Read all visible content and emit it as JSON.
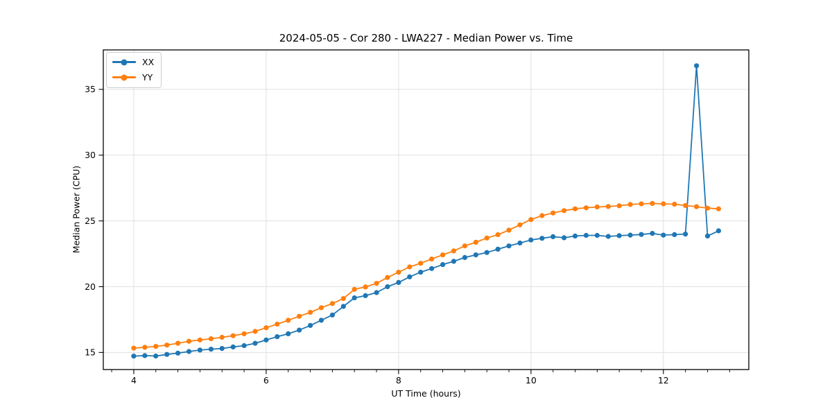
{
  "chart": {
    "legend": [
      "XX",
      "YY"
    ]
  },
  "chart_data": {
    "type": "line",
    "title": "2024-05-05 - Cor 280 - LWA227 - Median Power vs. Time",
    "xlabel": "UT Time (hours)",
    "ylabel": "Median Power (CPU)",
    "xlim": [
      3.54,
      13.29
    ],
    "ylim": [
      13.7,
      38.0
    ],
    "x_ticks": [
      4,
      6,
      8,
      10,
      12
    ],
    "x_minor_step": 0.3333,
    "y_ticks": [
      15,
      20,
      25,
      30,
      35
    ],
    "grid": true,
    "legend_position": "upper left",
    "marker": "circle",
    "x": [
      4.0,
      4.167,
      4.333,
      4.5,
      4.667,
      4.833,
      5.0,
      5.167,
      5.333,
      5.5,
      5.667,
      5.833,
      6.0,
      6.167,
      6.333,
      6.5,
      6.667,
      6.833,
      7.0,
      7.167,
      7.333,
      7.5,
      7.667,
      7.833,
      8.0,
      8.167,
      8.333,
      8.5,
      8.667,
      8.833,
      9.0,
      9.167,
      9.333,
      9.5,
      9.667,
      9.833,
      10.0,
      10.167,
      10.333,
      10.5,
      10.667,
      10.833,
      11.0,
      11.167,
      11.333,
      11.5,
      11.667,
      11.833,
      12.0,
      12.167,
      12.333,
      12.5,
      12.667,
      12.833
    ],
    "series": [
      {
        "name": "XX",
        "color": "#1f77b4",
        "values": [
          14.72,
          14.76,
          14.73,
          14.85,
          14.95,
          15.07,
          15.18,
          15.25,
          15.3,
          15.42,
          15.52,
          15.7,
          15.95,
          16.2,
          16.42,
          16.7,
          17.05,
          17.45,
          17.85,
          18.5,
          19.15,
          19.32,
          19.55,
          20.0,
          20.32,
          20.75,
          21.1,
          21.38,
          21.68,
          21.93,
          22.22,
          22.42,
          22.6,
          22.85,
          23.1,
          23.32,
          23.55,
          23.68,
          23.8,
          23.72,
          23.85,
          23.9,
          23.9,
          23.82,
          23.88,
          23.92,
          23.97,
          24.05,
          23.92,
          23.96,
          24.0,
          36.8,
          23.85,
          24.25
        ]
      },
      {
        "name": "YY",
        "color": "#ff7f0e",
        "values": [
          15.33,
          15.39,
          15.46,
          15.56,
          15.7,
          15.85,
          15.95,
          16.04,
          16.15,
          16.27,
          16.42,
          16.6,
          16.88,
          17.15,
          17.45,
          17.75,
          18.05,
          18.4,
          18.72,
          19.1,
          19.8,
          19.98,
          20.25,
          20.7,
          21.1,
          21.5,
          21.78,
          22.1,
          22.42,
          22.72,
          23.1,
          23.38,
          23.7,
          23.95,
          24.3,
          24.7,
          25.1,
          25.4,
          25.6,
          25.78,
          25.92,
          26.0,
          26.06,
          26.1,
          26.15,
          26.25,
          26.3,
          26.33,
          26.3,
          26.27,
          26.17,
          26.08,
          25.97,
          25.92
        ]
      }
    ]
  }
}
